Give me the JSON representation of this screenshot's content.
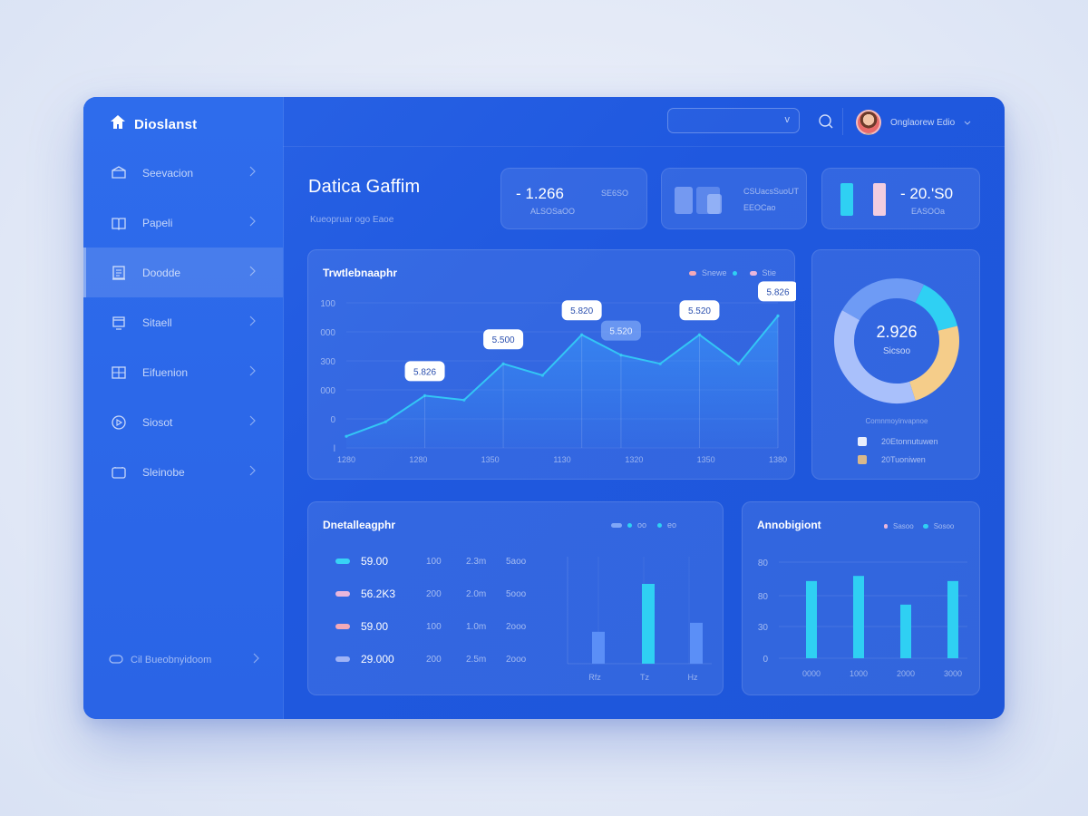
{
  "brand": {
    "name": "Dioslanst"
  },
  "sidebar": {
    "items": [
      {
        "label": "Seevacion",
        "icon": "box-icon"
      },
      {
        "label": "Papeli",
        "icon": "book-icon"
      },
      {
        "label": "Doodde",
        "icon": "document-icon"
      },
      {
        "label": "Sitaell",
        "icon": "monitor-icon"
      },
      {
        "label": "Eifuenion",
        "icon": "grid-icon"
      },
      {
        "label": "Siosot",
        "icon": "compass-icon"
      },
      {
        "label": "Sleinobe",
        "icon": "folder-icon"
      }
    ],
    "footer_label": "Cil Bueobnyidoom"
  },
  "topbar": {
    "select_caret": "v",
    "user_name": "Onglaorew  Edio"
  },
  "page": {
    "title": "Datica Gaffim",
    "subtitle": "Kueopruar  ogo  Eaoe"
  },
  "stats": [
    {
      "value": "- 1.266",
      "label_right": "SE6SO",
      "label_bottom": "ALSOSaOO"
    },
    {
      "value": "",
      "label_right": "CSUacsSuoUT",
      "label_bottom": "EEOCao"
    },
    {
      "value": "- 20.'S0",
      "label_right": "",
      "label_bottom": "EASOOa"
    }
  ],
  "line_card": {
    "title": "Trwtlebnaaphr",
    "legend": [
      "Snewe",
      "Stie"
    ]
  },
  "donut": {
    "value": "2.926",
    "sub": "Sicsoo",
    "caption": "Comnmoyinvapnoe",
    "legend": [
      "20Etonnutuwen",
      "20Tuoniwen"
    ]
  },
  "table_card": {
    "title": "Dnetalleagphr",
    "legend": [
      "oo",
      "eo"
    ]
  },
  "bar_card": {
    "title": "Annobigiont",
    "legend": [
      "Sasoo",
      "Sosoo"
    ]
  },
  "table_rows": [
    {
      "value": "59.00",
      "c2": "100",
      "c3": "2.3m",
      "c4": "5aoo",
      "color": "#38d3f5"
    },
    {
      "value": "56.2K3",
      "c2": "200",
      "c3": "2.0m",
      "c4": "5ooo",
      "color": "#e9b6dc"
    },
    {
      "value": "59.00",
      "c2": "100",
      "c3": "1.0m",
      "c4": "2ooo",
      "color": "#f3a9b8"
    },
    {
      "value": "29.000",
      "c2": "200",
      "c3": "2.5m",
      "c4": "2ooo",
      "color": "#9fb3f6"
    }
  ],
  "chart_data": [
    {
      "type": "area",
      "title": "Trwtlebnaaphr",
      "x": [
        "1280",
        "1280",
        "1350",
        "1130",
        "1320",
        "1350",
        "1380"
      ],
      "y_ticks": [
        "l",
        "0",
        "000",
        "300",
        "000",
        "100"
      ],
      "ylim": [
        0,
        100
      ],
      "points": [
        8,
        18,
        36,
        33,
        58,
        50,
        78,
        64,
        58,
        78,
        58,
        91
      ],
      "labels": [
        {
          "i": 2,
          "text": "5.826"
        },
        {
          "i": 4,
          "text": "5.500"
        },
        {
          "i": 6,
          "text": "5.820"
        },
        {
          "i": 7,
          "text": "5.520"
        },
        {
          "i": 9,
          "text": "5.520"
        },
        {
          "i": 11,
          "text": "5.826"
        }
      ],
      "color": "#33c6f5"
    },
    {
      "type": "pie",
      "center_value": "2.926",
      "slices": [
        {
          "label": "cyan",
          "value": 14,
          "color": "#2fd0f3"
        },
        {
          "label": "amber",
          "value": 24,
          "color": "#f5cd8a"
        },
        {
          "label": "lavender",
          "value": 38,
          "color": "#a9c0fb"
        },
        {
          "label": "blue",
          "value": 24,
          "color": "#6e9bf5"
        }
      ]
    },
    {
      "type": "bar",
      "categories": [
        "Rfz",
        "Tz",
        "Hz"
      ],
      "values": [
        32,
        80,
        41
      ],
      "colors": [
        "#5b8ff7",
        "#2fd0f3",
        "#5b8ff7"
      ]
    },
    {
      "type": "bar",
      "title": "Annobigiont",
      "categories": [
        "0000",
        "1000",
        "2000",
        "3000"
      ],
      "y_ticks": [
        "0",
        "30",
        "80",
        "80"
      ],
      "values": [
        70,
        75,
        47,
        70
      ],
      "ylim": [
        0,
        90
      ],
      "color": "#2fd0f3"
    }
  ]
}
